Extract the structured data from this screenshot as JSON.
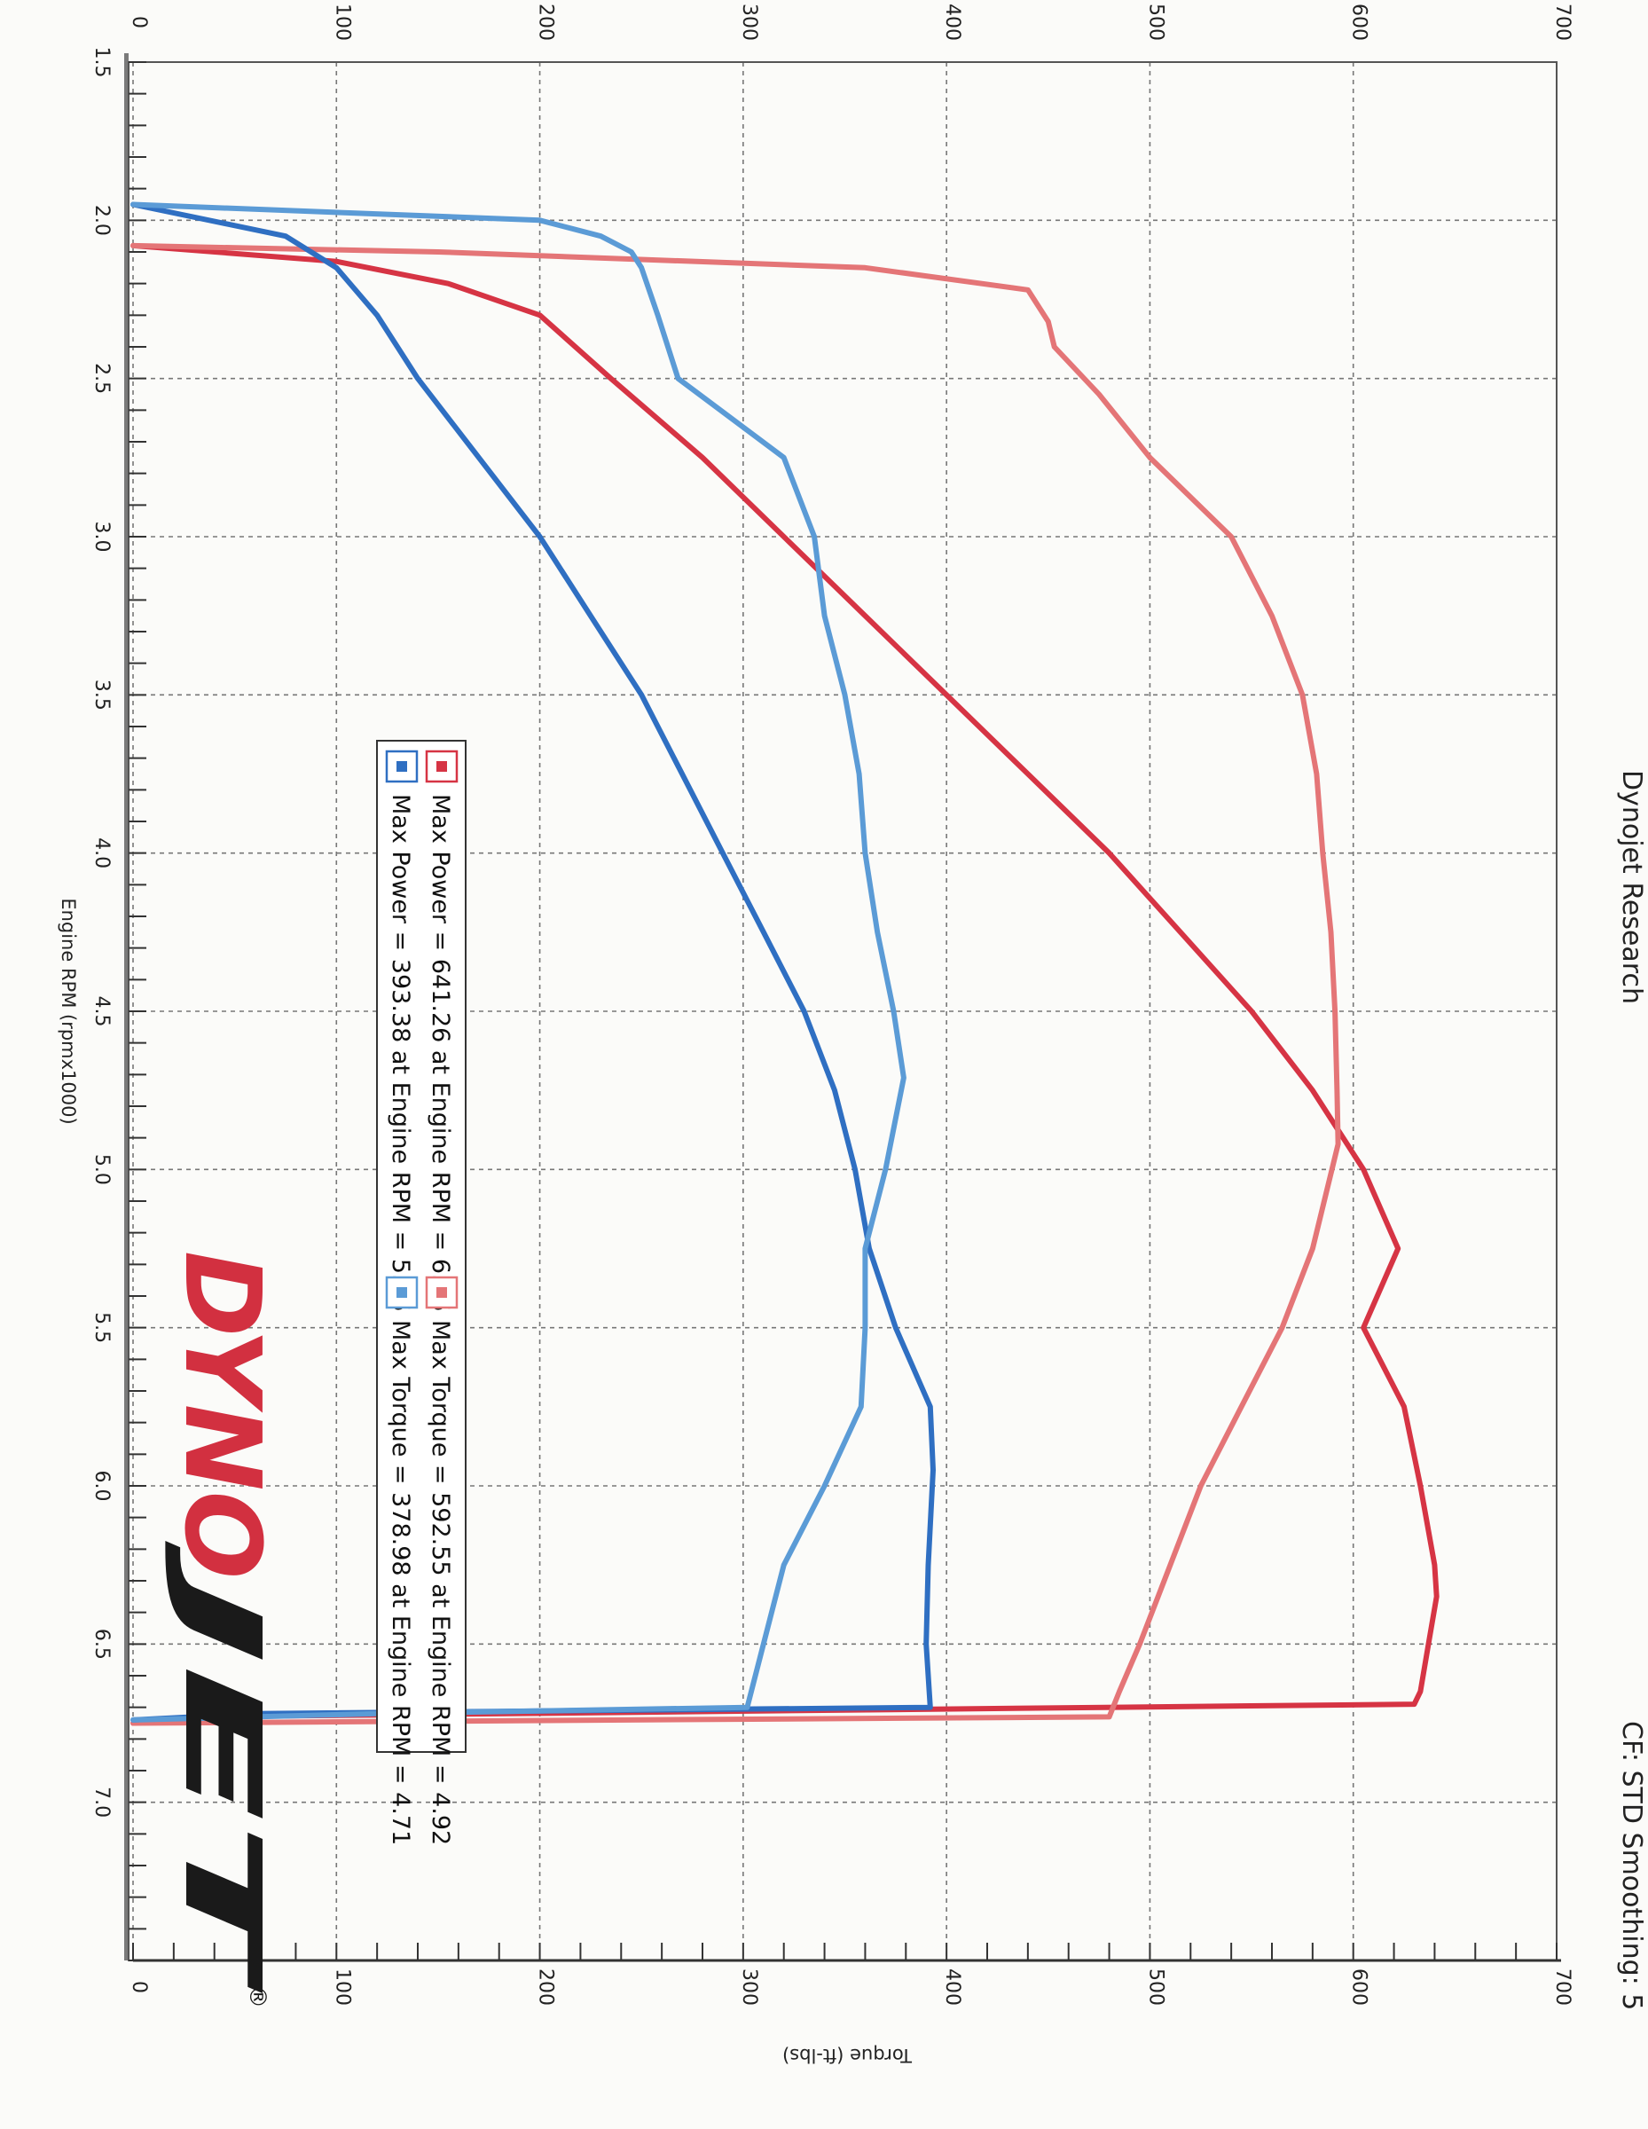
{
  "header": {
    "title": "Dynojet Research",
    "correction_label": "CF: STD Smoothing: 5"
  },
  "logo": {
    "part1": "DYNO",
    "part2": "JET",
    "mark": "®"
  },
  "colors": {
    "power_a": "#d63444",
    "torque_a": "#e47577",
    "power_b": "#2f6fc2",
    "torque_b": "#5b9bd6"
  },
  "chart_data": {
    "type": "line",
    "orientation": "page rotated 90° clockwise (x-axis runs top to bottom)",
    "xlabel": "Engine RPM (rpmx1000)",
    "ylabel_left": "",
    "ylabel_right": "Torque (ft-lbs)",
    "xlim": [
      1.5,
      7.5
    ],
    "ylim_left": [
      0,
      700
    ],
    "ylim_right": [
      0,
      700
    ],
    "x_ticks": [
      "1.5",
      "2.0",
      "2.5",
      "3.0",
      "3.5",
      "4.0",
      "4.5",
      "5.0",
      "5.5",
      "6.0",
      "6.5",
      "7.0"
    ],
    "y_ticks_left": [
      "0",
      "100",
      "200",
      "300",
      "400",
      "500",
      "600",
      "700"
    ],
    "y_ticks_right": [
      "0",
      "100",
      "200",
      "300",
      "400",
      "500",
      "600",
      "700"
    ],
    "grid": true,
    "legend_position": "center",
    "legend": [
      {
        "label": "Max Power = 641.26 at Engine RPM = 6.35",
        "color": "#d63444"
      },
      {
        "label": "Max Torque = 592.55 at Engine RPM = 4.92",
        "color": "#e47577"
      },
      {
        "label": "Max Power = 393.38 at Engine RPM = 5.95",
        "color": "#2f6fc2"
      },
      {
        "label": "Max Torque = 378.98 at Engine RPM = 4.71",
        "color": "#5b9bd6"
      }
    ],
    "series": [
      {
        "kind": "power",
        "color": "#d63444",
        "x": [
          2.08,
          2.13,
          2.2,
          2.3,
          2.5,
          2.75,
          3.0,
          3.25,
          3.5,
          3.75,
          4.0,
          4.25,
          4.5,
          4.75,
          5.0,
          5.25,
          5.5,
          5.75,
          6.0,
          6.25,
          6.35,
          6.5,
          6.65,
          6.69,
          6.73,
          6.75
        ],
        "y": [
          0,
          100,
          155,
          200,
          235,
          280,
          320,
          360,
          400,
          440,
          480,
          515,
          550,
          580,
          605,
          622,
          605,
          625,
          633,
          640,
          641,
          637,
          633,
          630,
          30,
          0
        ]
      },
      {
        "kind": "torque",
        "color": "#e47577",
        "x": [
          2.08,
          2.1,
          2.15,
          2.22,
          2.32,
          2.4,
          2.55,
          2.75,
          3.0,
          3.25,
          3.5,
          3.75,
          4.0,
          4.25,
          4.5,
          4.75,
          4.92,
          5.25,
          5.5,
          5.75,
          6.0,
          6.25,
          6.5,
          6.65,
          6.73,
          6.75
        ],
        "y": [
          0,
          150,
          360,
          440,
          450,
          453,
          475,
          500,
          540,
          560,
          575,
          582,
          585,
          589,
          591,
          592,
          592.55,
          580,
          565,
          545,
          525,
          510,
          495,
          485,
          480,
          0
        ]
      },
      {
        "kind": "power",
        "color": "#2f6fc2",
        "x": [
          1.95,
          2.05,
          2.15,
          2.3,
          2.5,
          2.75,
          3.0,
          3.25,
          3.5,
          3.75,
          4.0,
          4.25,
          4.5,
          4.75,
          5.0,
          5.25,
          5.5,
          5.75,
          5.95,
          6.25,
          6.5,
          6.7,
          6.72,
          6.74
        ],
        "y": [
          0,
          75,
          100,
          120,
          140,
          170,
          200,
          225,
          250,
          270,
          290,
          310,
          330,
          345,
          355,
          362,
          375,
          392,
          393.38,
          391,
          390,
          392,
          60,
          0
        ]
      },
      {
        "kind": "torque",
        "color": "#5b9bd6",
        "x": [
          1.95,
          2.0,
          2.05,
          2.1,
          2.15,
          2.3,
          2.5,
          2.75,
          3.0,
          3.25,
          3.5,
          3.75,
          4.0,
          4.25,
          4.5,
          4.71,
          5.0,
          5.25,
          5.5,
          5.75,
          6.0,
          6.25,
          6.5,
          6.7,
          6.72,
          6.74
        ],
        "y": [
          0,
          200,
          230,
          245,
          250,
          258,
          268,
          320,
          335,
          340,
          350,
          357,
          360,
          366,
          374,
          378.98,
          370,
          360,
          360,
          358,
          340,
          320,
          310,
          302,
          120,
          0
        ]
      }
    ]
  }
}
